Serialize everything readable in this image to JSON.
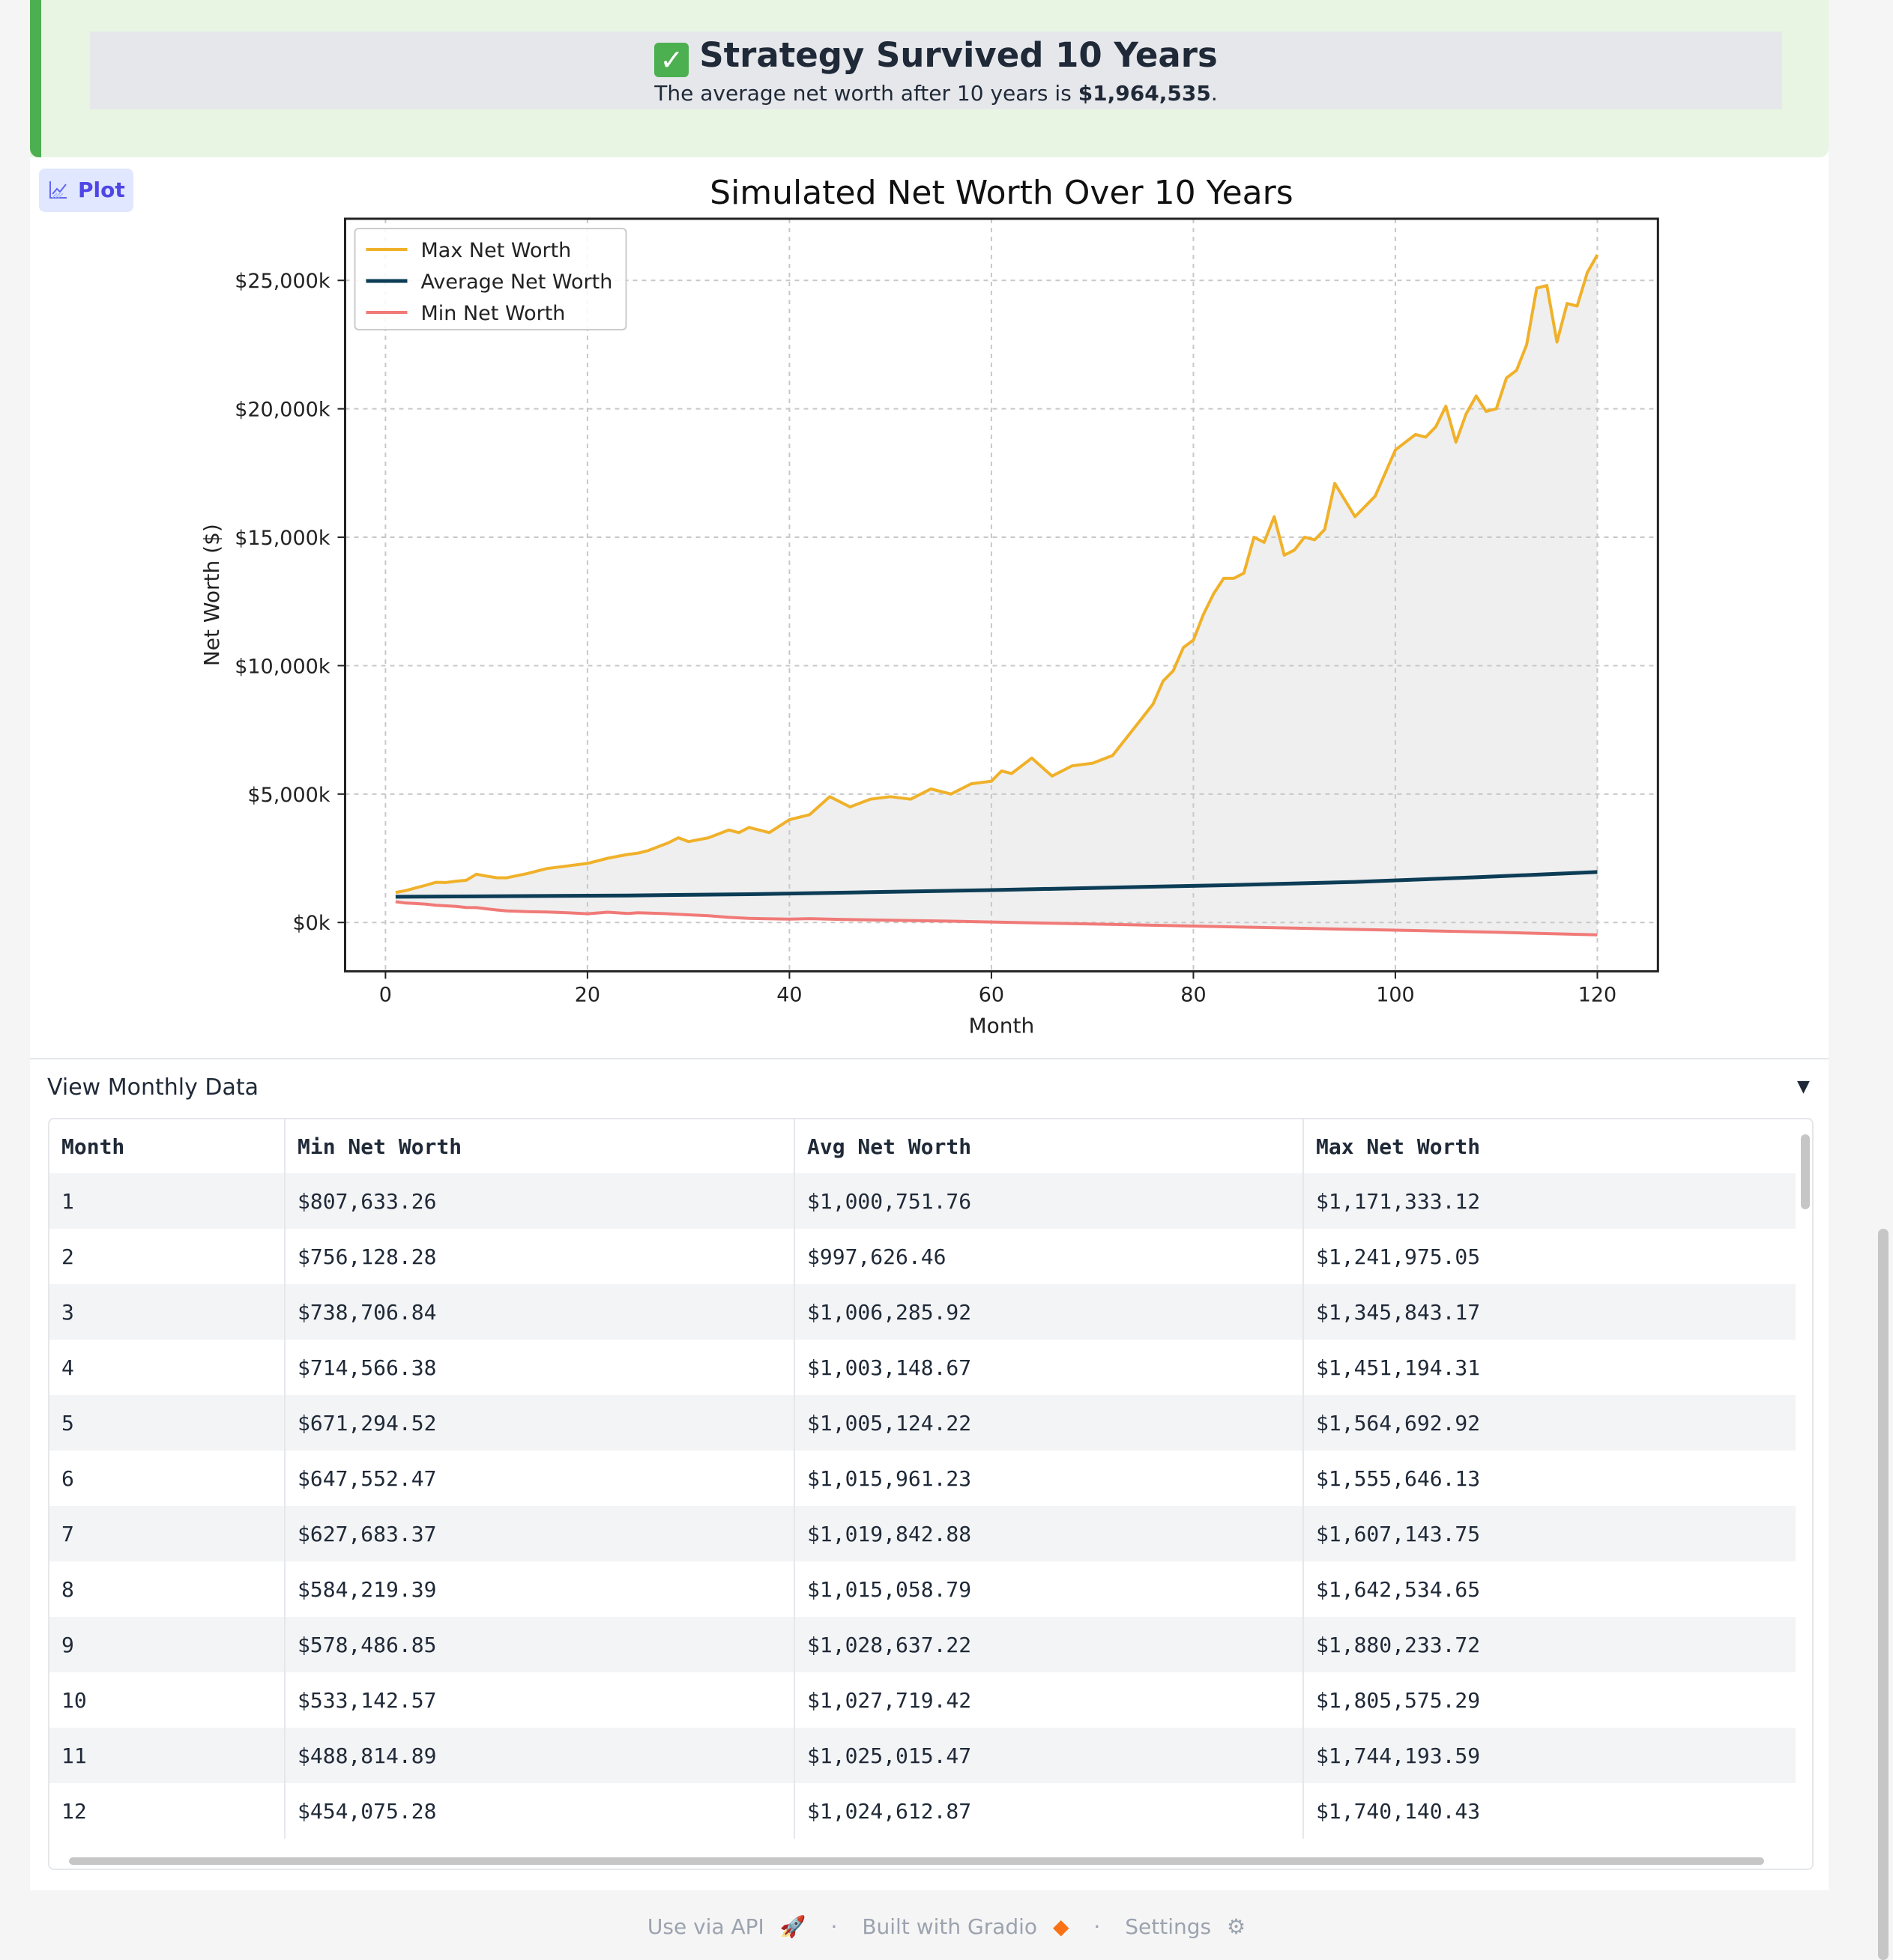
{
  "banner": {
    "check_glyph": "✓",
    "title": "Strategy Survived 10 Years",
    "subtitle_prefix": "The average net worth after 10 years is ",
    "subtitle_value": "$1,964,535",
    "subtitle_suffix": "."
  },
  "plot_label": "Plot",
  "chart_data": {
    "type": "line",
    "title": "Simulated Net Worth Over 10 Years",
    "xlabel": "Month",
    "ylabel": "Net Worth ($)",
    "xlim": [
      -4,
      126
    ],
    "ylim": [
      -1900,
      27400
    ],
    "xticks": [
      0,
      20,
      40,
      60,
      80,
      100,
      120
    ],
    "xtick_labels": [
      "0",
      "20",
      "40",
      "60",
      "80",
      "100",
      "120"
    ],
    "yticks": [
      0,
      5000,
      10000,
      15000,
      20000,
      25000
    ],
    "ytick_labels": [
      "$0k",
      "$5,000k",
      "$10,000k",
      "$15,000k",
      "$20,000k",
      "$25,000k"
    ],
    "grid": true,
    "legend_position": "top-left",
    "fill_between": [
      "Min Net Worth",
      "Max Net Worth"
    ],
    "fill_color": "#efefef",
    "series": [
      {
        "name": "Max Net Worth",
        "color": "#f0b12a",
        "x": [
          1,
          2,
          3,
          4,
          5,
          6,
          7,
          8,
          9,
          10,
          11,
          12,
          14,
          16,
          18,
          20,
          22,
          24,
          25,
          26,
          28,
          29,
          30,
          32,
          34,
          35,
          36,
          38,
          40,
          42,
          44,
          46,
          48,
          50,
          52,
          54,
          56,
          58,
          60,
          61,
          62,
          64,
          66,
          68,
          70,
          72,
          74,
          75,
          76,
          77,
          78,
          79,
          80,
          81,
          82,
          83,
          84,
          85,
          86,
          87,
          88,
          89,
          90,
          91,
          92,
          93,
          94,
          96,
          98,
          100,
          101,
          102,
          103,
          104,
          105,
          106,
          107,
          108,
          109,
          110,
          111,
          112,
          113,
          114,
          115,
          116,
          117,
          118,
          119,
          120
        ],
        "y": [
          1171,
          1242,
          1346,
          1451,
          1565,
          1556,
          1607,
          1643,
          1880,
          1806,
          1744,
          1740,
          1900,
          2100,
          2200,
          2300,
          2500,
          2650,
          2700,
          2800,
          3100,
          3300,
          3150,
          3300,
          3600,
          3500,
          3700,
          3500,
          4000,
          4200,
          4900,
          4500,
          4800,
          4900,
          4800,
          5200,
          5000,
          5400,
          5500,
          5900,
          5800,
          6400,
          5700,
          6100,
          6200,
          6500,
          7500,
          8000,
          8500,
          9400,
          9800,
          10700,
          11000,
          12000,
          12800,
          13400,
          13400,
          13600,
          15000,
          14800,
          15800,
          14300,
          14500,
          15000,
          14900,
          15300,
          17100,
          15800,
          16600,
          18400,
          18700,
          19000,
          18900,
          19300,
          20100,
          18700,
          19800,
          20500,
          19900,
          20000,
          21200,
          21500,
          22500,
          24700,
          24800,
          22600,
          24100,
          24000,
          25300,
          26000
        ]
      },
      {
        "name": "Average Net Worth",
        "color": "#0d3d56",
        "x": [
          1,
          12,
          24,
          36,
          48,
          60,
          72,
          84,
          96,
          108,
          120
        ],
        "y": [
          1001,
          1025,
          1050,
          1100,
          1180,
          1260,
          1360,
          1460,
          1580,
          1760,
          1965
        ]
      },
      {
        "name": "Min Net Worth",
        "color": "#f07a78",
        "x": [
          1,
          2,
          3,
          4,
          5,
          6,
          7,
          8,
          9,
          10,
          11,
          12,
          14,
          16,
          18,
          20,
          22,
          24,
          25,
          28,
          30,
          32,
          34,
          36,
          40,
          42,
          45,
          50,
          55,
          60,
          70,
          80,
          90,
          100,
          110,
          120
        ],
        "y": [
          808,
          756,
          739,
          715,
          671,
          648,
          628,
          584,
          578,
          533,
          489,
          454,
          420,
          410,
          380,
          340,
          400,
          350,
          380,
          340,
          300,
          260,
          200,
          160,
          130,
          150,
          120,
          90,
          60,
          20,
          -60,
          -140,
          -220,
          -300,
          -380,
          -480
        ]
      }
    ]
  },
  "accordion": {
    "title": "View Monthly Data",
    "arrow": "▼"
  },
  "table": {
    "headers": [
      "Month",
      "Min Net Worth",
      "Avg Net Worth",
      "Max Net Worth"
    ],
    "rows": [
      [
        "1",
        "$807,633.26",
        "$1,000,751.76",
        "$1,171,333.12"
      ],
      [
        "2",
        "$756,128.28",
        "$997,626.46",
        "$1,241,975.05"
      ],
      [
        "3",
        "$738,706.84",
        "$1,006,285.92",
        "$1,345,843.17"
      ],
      [
        "4",
        "$714,566.38",
        "$1,003,148.67",
        "$1,451,194.31"
      ],
      [
        "5",
        "$671,294.52",
        "$1,005,124.22",
        "$1,564,692.92"
      ],
      [
        "6",
        "$647,552.47",
        "$1,015,961.23",
        "$1,555,646.13"
      ],
      [
        "7",
        "$627,683.37",
        "$1,019,842.88",
        "$1,607,143.75"
      ],
      [
        "8",
        "$584,219.39",
        "$1,015,058.79",
        "$1,642,534.65"
      ],
      [
        "9",
        "$578,486.85",
        "$1,028,637.22",
        "$1,880,233.72"
      ],
      [
        "10",
        "$533,142.57",
        "$1,027,719.42",
        "$1,805,575.29"
      ],
      [
        "11",
        "$488,814.89",
        "$1,025,015.47",
        "$1,744,193.59"
      ],
      [
        "12",
        "$454,075.28",
        "$1,024,612.87",
        "$1,740,140.43"
      ]
    ]
  },
  "footer": {
    "api": "Use via API",
    "api_icon": "🚀",
    "built": "Built with Gradio",
    "built_icon": "◆",
    "settings": "Settings",
    "settings_icon": "⚙",
    "separator": "·"
  }
}
